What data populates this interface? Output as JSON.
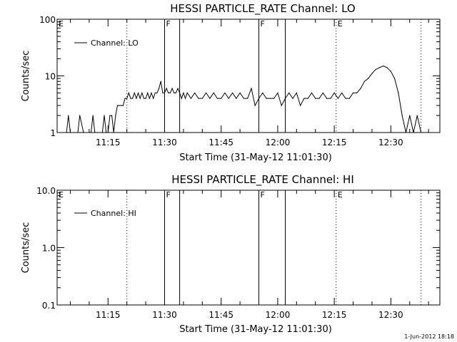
{
  "footer": {
    "timestamp": "1-Jun-2012 18:18"
  },
  "chart_data": [
    {
      "type": "line",
      "title": "HESSI PARTICLE_RATE Channel: LO",
      "xlabel": "Start Time (31-May-12 11:01:30)",
      "ylabel": "Counts/sec",
      "y_scale": "log",
      "ylim": [
        1,
        100
      ],
      "xlim": [
        "11:01:30",
        "12:43:00"
      ],
      "x_ticks": [
        "11:15",
        "11:30",
        "11:45",
        "12:00",
        "12:15",
        "12:30"
      ],
      "y_ticks": [
        "1",
        "10",
        "100"
      ],
      "grid": false,
      "legend": {
        "position": "top-left",
        "entries": [
          "Channel: LO"
        ]
      },
      "series": [
        {
          "name": "Channel: LO",
          "x": [
            "11:04:00",
            "11:04:30",
            "11:05:00",
            "11:07:00",
            "11:07:30",
            "11:08:30",
            "11:10:30",
            "11:11:00",
            "11:11:30",
            "11:13:30",
            "11:14:00",
            "11:14:30",
            "11:15:00",
            "11:15:30",
            "11:16:00",
            "11:16:30",
            "11:17:00",
            "11:17:30",
            "11:18:00",
            "11:18:30",
            "11:19:00",
            "11:19:30",
            "11:20:00",
            "11:20:30",
            "11:21:00",
            "11:21:30",
            "11:22:00",
            "11:22:30",
            "11:23:00",
            "11:23:30",
            "11:24:00",
            "11:24:30",
            "11:25:00",
            "11:25:30",
            "11:26:00",
            "11:26:30",
            "11:27:00",
            "11:27:30",
            "11:28:00",
            "11:28:30",
            "11:29:00",
            "11:29:30",
            "11:30:00",
            "11:30:30",
            "11:31:00",
            "11:31:30",
            "11:32:00",
            "11:32:30",
            "11:33:00",
            "11:33:30",
            "11:34:00",
            "11:34:30",
            "11:35:00",
            "11:35:30",
            "11:36:00",
            "11:37:00",
            "11:38:00",
            "11:39:00",
            "11:40:00",
            "11:41:00",
            "11:42:00",
            "11:43:00",
            "11:44:00",
            "11:45:00",
            "11:46:00",
            "11:47:00",
            "11:48:00",
            "11:49:00",
            "11:50:00",
            "11:51:00",
            "11:52:00",
            "11:53:00",
            "11:54:00",
            "11:55:00",
            "11:56:00",
            "11:57:00",
            "11:58:00",
            "11:59:00",
            "12:00:00",
            "12:01:00",
            "12:02:00",
            "12:03:00",
            "12:04:00",
            "12:05:00",
            "12:06:00",
            "12:07:00",
            "12:08:00",
            "12:09:00",
            "12:10:00",
            "12:11:00",
            "12:12:00",
            "12:13:00",
            "12:14:00",
            "12:15:00",
            "12:16:00",
            "12:17:00",
            "12:18:00",
            "12:19:00",
            "12:20:00",
            "12:21:00",
            "12:22:00",
            "12:23:00",
            "12:24:00",
            "12:25:00",
            "12:26:00",
            "12:27:00",
            "12:28:00",
            "12:29:00",
            "12:30:00",
            "12:31:00",
            "12:32:00",
            "12:33:00",
            "12:34:00",
            "12:35:00",
            "12:36:00",
            "12:37:00",
            "12:38:00"
          ],
          "values": [
            1,
            2,
            1,
            1,
            2,
            1,
            1,
            2,
            1,
            1,
            2,
            1,
            1,
            2,
            2,
            1,
            2,
            3,
            3,
            3,
            3,
            4,
            4,
            5,
            4,
            4,
            5,
            4,
            5,
            4,
            5,
            4,
            4,
            5,
            4,
            5,
            4,
            5,
            5,
            6,
            8,
            5,
            5,
            6,
            5,
            5,
            6,
            5,
            5,
            6,
            5,
            4,
            5,
            4,
            5,
            4,
            5,
            4,
            4,
            5,
            4,
            5,
            4,
            4,
            5,
            4,
            5,
            4,
            5,
            4,
            4,
            6,
            3,
            4,
            5,
            4,
            4,
            4,
            5,
            3,
            4,
            5,
            4,
            5,
            3,
            4,
            4,
            5,
            4,
            4,
            5,
            4,
            4,
            5,
            4,
            5,
            4,
            4,
            5,
            5,
            6,
            8,
            9,
            11,
            13,
            14,
            15,
            14,
            12,
            9,
            5,
            2,
            1,
            2,
            1,
            2,
            1
          ],
          "color": "#000000"
        }
      ],
      "annotations": [
        {
          "label": "E",
          "time": "11:01:30",
          "style": "dotted"
        },
        {
          "label": "",
          "time": "11:20:00",
          "style": "dotted"
        },
        {
          "label": "F",
          "time": "11:30:00",
          "style": "solid"
        },
        {
          "label": "",
          "time": "11:34:00",
          "style": "solid"
        },
        {
          "label": "F",
          "time": "11:55:00",
          "style": "solid"
        },
        {
          "label": "",
          "time": "12:02:00",
          "style": "solid"
        },
        {
          "label": "E",
          "time": "12:15:30",
          "style": "dotted"
        },
        {
          "label": "",
          "time": "12:38:00",
          "style": "dotted"
        }
      ]
    },
    {
      "type": "line",
      "title": "HESSI PARTICLE_RATE Channel: HI",
      "xlabel": "Start Time (31-May-12 11:01:30)",
      "ylabel": "Counts/sec",
      "y_scale": "log",
      "ylim": [
        0.1,
        10
      ],
      "xlim": [
        "11:01:30",
        "12:43:00"
      ],
      "x_ticks": [
        "11:15",
        "11:30",
        "11:45",
        "12:00",
        "12:15",
        "12:30"
      ],
      "y_ticks": [
        "0.1",
        "1.0",
        "10.0"
      ],
      "grid": false,
      "legend": {
        "position": "top-left",
        "entries": [
          "Channel: HI"
        ]
      },
      "series": [
        {
          "name": "Channel: HI",
          "x": [],
          "values": [],
          "color": "#000000"
        }
      ],
      "annotations": [
        {
          "label": "E",
          "time": "11:01:30",
          "style": "dotted"
        },
        {
          "label": "",
          "time": "11:20:00",
          "style": "dotted"
        },
        {
          "label": "F",
          "time": "11:30:00",
          "style": "solid"
        },
        {
          "label": "",
          "time": "11:34:00",
          "style": "solid"
        },
        {
          "label": "F",
          "time": "11:55:00",
          "style": "solid"
        },
        {
          "label": "",
          "time": "12:02:00",
          "style": "solid"
        },
        {
          "label": "E",
          "time": "12:15:30",
          "style": "dotted"
        },
        {
          "label": "",
          "time": "12:38:00",
          "style": "dotted"
        }
      ]
    }
  ]
}
